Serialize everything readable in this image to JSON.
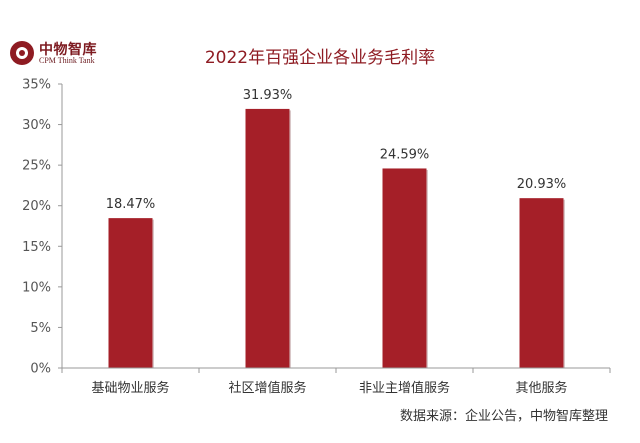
{
  "logo": {
    "name": "中物智库",
    "subtitle": "CPM Think Tank",
    "color": "#8e1b22"
  },
  "source": "数据来源：企业公告，中物智库整理",
  "chart_data": {
    "type": "bar",
    "title": "2022年百强企业各业务毛利率",
    "xlabel": "",
    "ylabel": "",
    "categories": [
      "基础物业服务",
      "社区增值服务",
      "非业主增值服务",
      "其他服务"
    ],
    "values": [
      18.47,
      31.93,
      24.59,
      20.93
    ],
    "data_labels": [
      "18.47%",
      "31.93%",
      "24.59%",
      "20.93%"
    ],
    "ylim": [
      0,
      35
    ],
    "yticks": [
      0,
      5,
      10,
      15,
      20,
      25,
      30,
      35
    ],
    "ytick_labels": [
      "0%",
      "5%",
      "10%",
      "15%",
      "20%",
      "25%",
      "30%",
      "35%"
    ],
    "grid": false,
    "legend": "none",
    "bar_color": "#a51f28",
    "title_color": "#8e1b22"
  }
}
